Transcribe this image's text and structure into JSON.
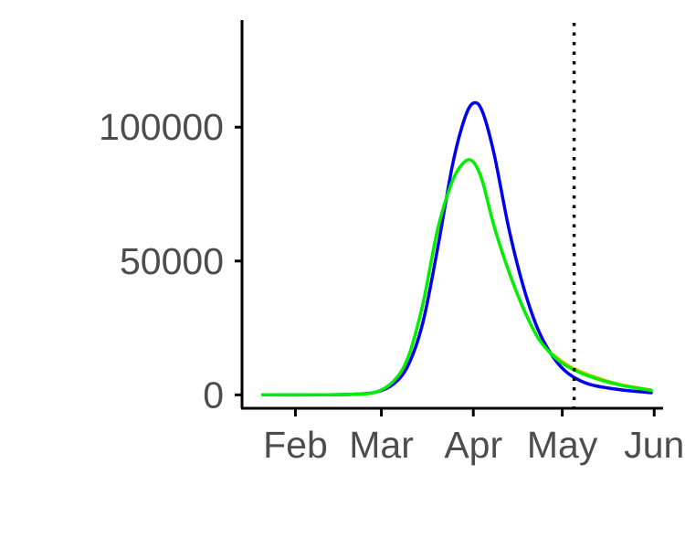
{
  "chart_data": {
    "type": "line",
    "x_axis": {
      "scale": "date",
      "range": [
        "2020-01-14",
        "2020-06-04"
      ],
      "ticks": [
        {
          "date": "2020-02-01",
          "label": "Feb"
        },
        {
          "date": "2020-03-01",
          "label": "Mar"
        },
        {
          "date": "2020-04-01",
          "label": "Apr"
        },
        {
          "date": "2020-05-01",
          "label": "May"
        },
        {
          "date": "2020-06-01",
          "label": "Jun"
        }
      ]
    },
    "y_axis": {
      "range": [
        -5000,
        140000
      ],
      "ticks": [
        {
          "value": 0,
          "label": "0"
        },
        {
          "value": 50000,
          "label": "50000"
        },
        {
          "value": 100000,
          "label": "100000"
        }
      ]
    },
    "vline": {
      "date": "2020-05-05",
      "style": "dotted",
      "color": "#000000"
    },
    "series": [
      {
        "color": "#0000ee",
        "points": [
          [
            "2020-01-21",
            0
          ],
          [
            "2020-02-10",
            0
          ],
          [
            "2020-02-20",
            200
          ],
          [
            "2020-02-28",
            1000
          ],
          [
            "2020-03-05",
            4000
          ],
          [
            "2020-03-10",
            11000
          ],
          [
            "2020-03-15",
            27000
          ],
          [
            "2020-03-20",
            55000
          ],
          [
            "2020-03-25",
            86000
          ],
          [
            "2020-03-29",
            103000
          ],
          [
            "2020-04-01",
            109000
          ],
          [
            "2020-04-04",
            106000
          ],
          [
            "2020-04-08",
            90000
          ],
          [
            "2020-04-13",
            62000
          ],
          [
            "2020-04-18",
            40000
          ],
          [
            "2020-04-23",
            24000
          ],
          [
            "2020-04-28",
            14000
          ],
          [
            "2020-05-03",
            8000
          ],
          [
            "2020-05-10",
            4000
          ],
          [
            "2020-05-20",
            2000
          ],
          [
            "2020-05-31",
            800
          ]
        ]
      },
      {
        "color": "#e8c000",
        "points": [
          [
            "2020-04-28",
            15000
          ],
          [
            "2020-05-03",
            11000
          ],
          [
            "2020-05-10",
            7500
          ],
          [
            "2020-05-20",
            4000
          ],
          [
            "2020-05-31",
            1800
          ]
        ]
      },
      {
        "color": "#00ee00",
        "points": [
          [
            "2020-01-21",
            0
          ],
          [
            "2020-02-10",
            0
          ],
          [
            "2020-02-20",
            200
          ],
          [
            "2020-02-28",
            1000
          ],
          [
            "2020-03-05",
            5000
          ],
          [
            "2020-03-10",
            14000
          ],
          [
            "2020-03-15",
            34000
          ],
          [
            "2020-03-20",
            62000
          ],
          [
            "2020-03-25",
            80000
          ],
          [
            "2020-03-29",
            87000
          ],
          [
            "2020-04-01",
            87000
          ],
          [
            "2020-04-04",
            80000
          ],
          [
            "2020-04-08",
            63000
          ],
          [
            "2020-04-13",
            46000
          ],
          [
            "2020-04-18",
            32000
          ],
          [
            "2020-04-23",
            21000
          ],
          [
            "2020-04-28",
            14500
          ],
          [
            "2020-05-03",
            10500
          ],
          [
            "2020-05-10",
            7000
          ],
          [
            "2020-05-20",
            3800
          ],
          [
            "2020-05-31",
            1700
          ]
        ]
      }
    ]
  }
}
